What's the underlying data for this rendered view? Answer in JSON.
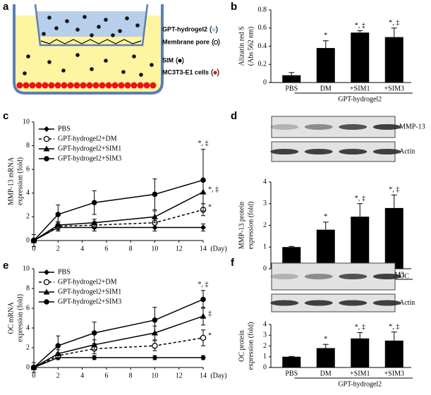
{
  "diagram": {
    "label": "a",
    "legend": [
      "GPT-hydrogel2",
      "Membrane pore",
      "SIM",
      "MC3T3-E1 cells"
    ]
  },
  "chart_data": [
    {
      "type": "bar",
      "label": "b",
      "ylabel": [
        "Alizarin red S",
        "(Abs 562 nm)"
      ],
      "categories": [
        "PBS",
        "DM",
        "+SIM1",
        "+SIM3"
      ],
      "values": [
        0.08,
        0.38,
        0.55,
        0.5
      ],
      "errors": [
        0.03,
        0.08,
        0.02,
        0.1
      ],
      "annotations": [
        null,
        "*",
        "*, ‡",
        "*, ‡"
      ],
      "group_label": "GPT-hydrogel2",
      "ylim": [
        0,
        0.8
      ],
      "yticks": [
        0,
        0.2,
        0.4,
        0.6,
        0.8
      ],
      "color": "#000000"
    },
    {
      "type": "line",
      "label": "c",
      "ylabel": [
        "MMP-13 mRNA",
        "expression (fold)"
      ],
      "x": [
        0,
        2,
        5,
        10,
        14
      ],
      "xlim": [
        0,
        14
      ],
      "xticks": [
        0,
        2,
        4,
        6,
        8,
        10,
        12,
        14
      ],
      "xunit": "(Day)",
      "ylim": [
        0,
        10
      ],
      "yticks": [
        0,
        2,
        4,
        6,
        8,
        10
      ],
      "series": [
        {
          "name": "PBS",
          "marker": "diamond",
          "dashed": false,
          "values": [
            0,
            1.1,
            1.1,
            1.1,
            1.1
          ],
          "errors": [
            0.5,
            0.3,
            0.3,
            0.3,
            0.3
          ],
          "end_label": null
        },
        {
          "name": "GPT-hydrogel2+DM",
          "marker": "open-circle",
          "dashed": true,
          "values": [
            0,
            1.2,
            1.3,
            1.5,
            2.6
          ],
          "errors": [
            0,
            0.3,
            0.3,
            0.4,
            0.5
          ],
          "end_label": "*"
        },
        {
          "name": "GPT-hydrogel2+SIM1",
          "marker": "triangle",
          "dashed": false,
          "values": [
            0,
            1.3,
            1.5,
            2.0,
            4.1
          ],
          "errors": [
            0,
            0.3,
            0.3,
            0.5,
            1.0
          ],
          "end_label": "*, ‡"
        },
        {
          "name": "GPT-hydrogel2+SIM3",
          "marker": "circle",
          "dashed": false,
          "values": [
            0,
            2.2,
            3.2,
            3.9,
            5.1
          ],
          "errors": [
            0,
            0.8,
            1.0,
            1.3,
            2.6
          ],
          "end_label": "*, ‡"
        }
      ]
    },
    {
      "type": "bar",
      "label": "d",
      "ylabel": [
        "MMP-13 protein",
        "expression (fold)"
      ],
      "blot_labels": [
        "MMP-13",
        "Actin"
      ],
      "categories": [
        "PBS",
        "DM",
        "+SIM1",
        "+SIM3"
      ],
      "values": [
        1,
        1.8,
        2.4,
        2.8
      ],
      "errors": [
        0.03,
        0.35,
        0.6,
        0.6
      ],
      "annotations": [
        null,
        "*",
        "*, ‡",
        "*, ‡"
      ],
      "group_label": "GPT-hydrogel2",
      "ylim": [
        0,
        4
      ],
      "yticks": [
        0,
        1,
        2,
        3,
        4
      ],
      "color": "#000000"
    },
    {
      "type": "line",
      "label": "e",
      "ylabel": [
        "OC mRNA",
        "expression (fold)"
      ],
      "x": [
        0,
        2,
        5,
        10,
        14
      ],
      "xlim": [
        0,
        14
      ],
      "xticks": [
        0,
        2,
        4,
        6,
        8,
        10,
        12,
        14
      ],
      "xunit": "(Day)",
      "ylim": [
        0,
        10
      ],
      "yticks": [
        0,
        2,
        4,
        6,
        8,
        10
      ],
      "series": [
        {
          "name": "PBS",
          "marker": "diamond",
          "dashed": false,
          "values": [
            0,
            1,
            1,
            1,
            1
          ],
          "errors": [
            0.5,
            0.2,
            0.2,
            0.2,
            0.2
          ],
          "end_label": null
        },
        {
          "name": "GPT-hydrogel2+DM",
          "marker": "open-circle",
          "dashed": true,
          "values": [
            0,
            1.2,
            1.9,
            2.2,
            3.0
          ],
          "errors": [
            0,
            0.3,
            0.5,
            0.5,
            0.8
          ],
          "end_label": "*"
        },
        {
          "name": "GPT-hydrogel2+SIM1",
          "marker": "triangle",
          "dashed": false,
          "values": [
            0,
            1.4,
            2.3,
            3.5,
            5.2
          ],
          "errors": [
            0,
            0.4,
            0.5,
            0.7,
            0.9
          ],
          "end_label": "‡"
        },
        {
          "name": "GPT-hydrogel2+SIM3",
          "marker": "circle",
          "dashed": false,
          "values": [
            0,
            2.2,
            3.5,
            4.8,
            6.9
          ],
          "errors": [
            0,
            1.0,
            1.1,
            1.3,
            0.9
          ],
          "end_label": "*, ‡"
        }
      ]
    },
    {
      "type": "bar",
      "label": "f",
      "ylabel": [
        "OC protein",
        "expression (fold)"
      ],
      "blot_labels": [
        "OC",
        "Actin"
      ],
      "categories": [
        "PBS",
        "DM",
        "+SIM1",
        "+SIM3"
      ],
      "values": [
        1,
        1.8,
        2.7,
        2.5
      ],
      "errors": [
        0.03,
        0.35,
        0.55,
        0.8
      ],
      "annotations": [
        null,
        "*",
        "*, ‡",
        "*, ‡"
      ],
      "group_label": "GPT-hydrogel2",
      "ylim": [
        0,
        4
      ],
      "yticks": [
        0,
        1,
        2,
        3,
        4
      ],
      "color": "#000000"
    }
  ]
}
